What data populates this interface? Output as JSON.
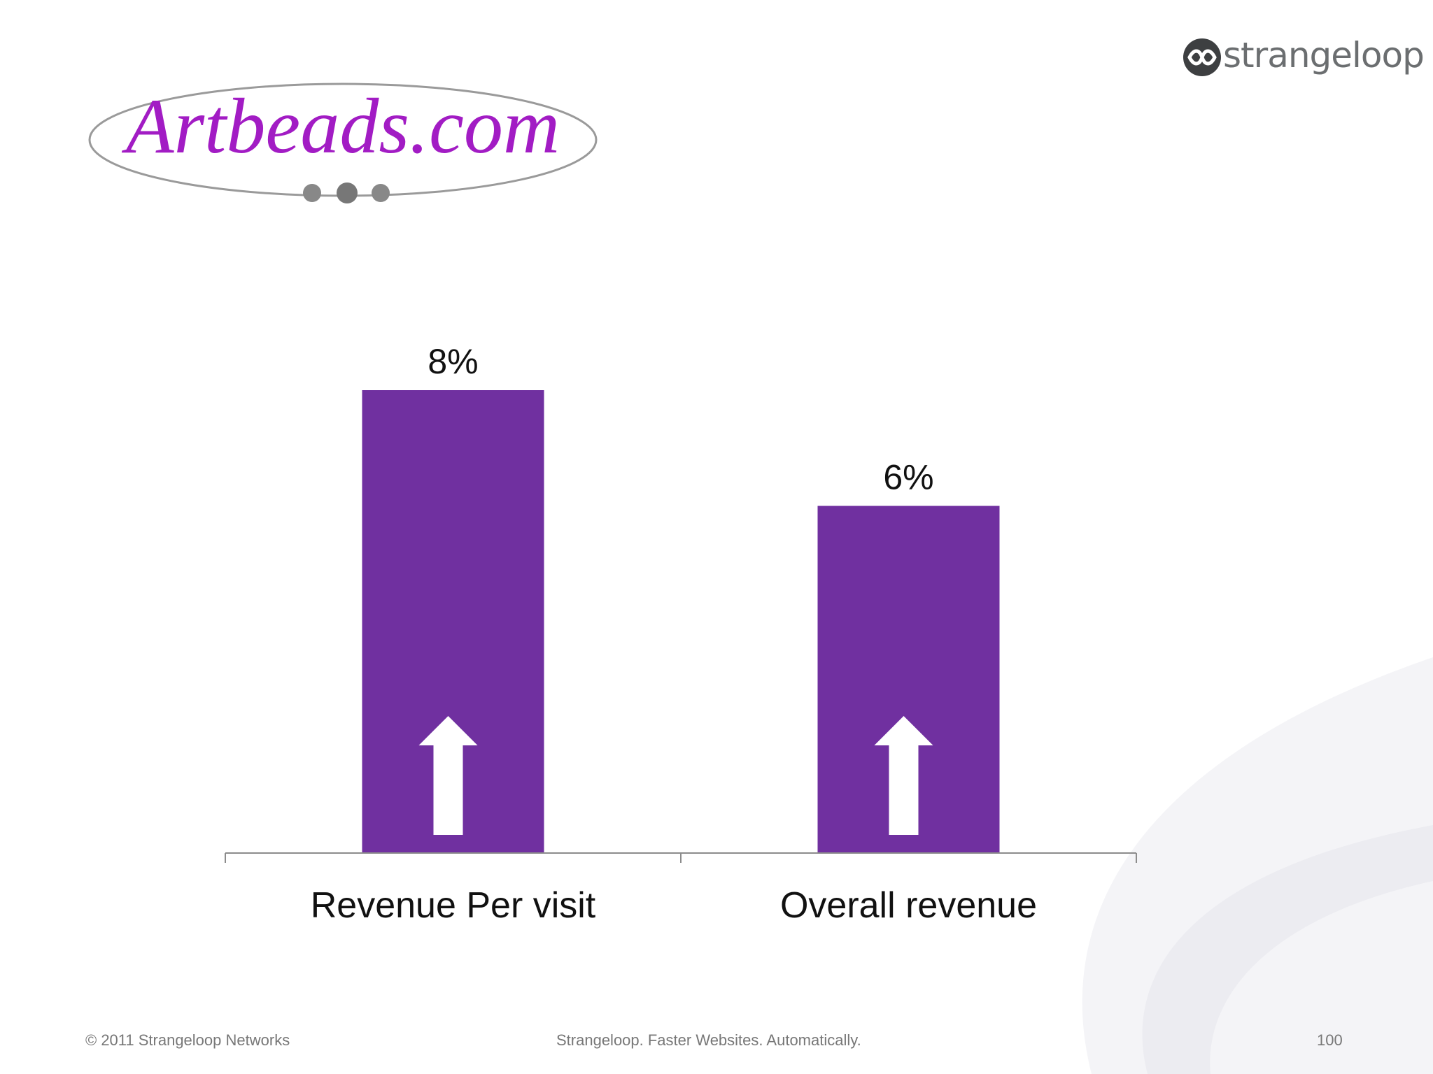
{
  "slide": {
    "logo_left": "Artbeads.com",
    "logo_right": "strangeloop",
    "footer_left": "© 2011 Strangeloop Networks",
    "footer_center": "Strangeloop. Faster Websites. Automatically.",
    "page_number": "100"
  },
  "colors": {
    "bar": "#7030a0",
    "arrow": "#ffffff",
    "axis": "#8c8c8c",
    "logo_purple": "#a21cc4"
  },
  "chart_data": {
    "type": "bar",
    "categories": [
      "Revenue Per visit",
      "Overall revenue"
    ],
    "values": [
      8,
      6
    ],
    "value_labels": [
      "8%",
      "6%"
    ],
    "ylim": [
      0,
      8
    ],
    "grid": false,
    "legend": "none",
    "markers": [
      "up-arrow-icon",
      "up-arrow-icon"
    ]
  }
}
